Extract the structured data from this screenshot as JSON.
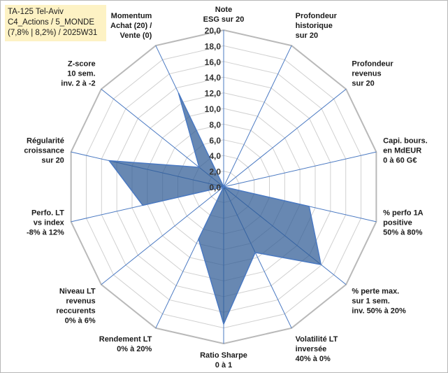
{
  "info_box": {
    "line1": "TA-125 Tel-Aviv",
    "line2": "C4_Actions / 5_MONDE",
    "line3": "(7,8% | 8,2%) / 2025W31"
  },
  "colors": {
    "fill": "#2e5a94",
    "stroke": "#4a79c2",
    "spoke": "#4a79c2",
    "grid": "#d0d0d0",
    "outer": "#b9b9b9"
  },
  "chart_data": {
    "type": "radar",
    "title": "",
    "rlim": [
      0,
      20
    ],
    "ticks": [
      "0,0",
      "2,0",
      "4,0",
      "6,0",
      "8,0",
      "10,0",
      "12,0",
      "14,0",
      "16,0",
      "18,0",
      "20,0"
    ],
    "grid": true,
    "axes": [
      [
        "Note",
        "ESG sur 20"
      ],
      [
        "Profondeur",
        "historique",
        "sur 20"
      ],
      [
        "Profondeur",
        "revenus",
        "sur 20"
      ],
      [
        "Capi. bours.",
        "en MdEUR",
        "0 à 60 G€"
      ],
      [
        "% perfo 1A",
        "positive",
        "50% à 80%"
      ],
      [
        "% perte max.",
        "sur 1 sem.",
        "inv. 50% à 20%"
      ],
      [
        "Volatilité LT",
        "inversée",
        "40% à 0%"
      ],
      [
        "Ratio Sharpe",
        "0 à 1"
      ],
      [
        "Rendement LT",
        "0% à 20%"
      ],
      [
        "Niveau LT",
        "revenus",
        "reccurents",
        "0% à 6%"
      ],
      [
        "Perfo. LT",
        "vs index",
        "-8% à 12%"
      ],
      [
        "Régularité",
        "croissance",
        "sur 20"
      ],
      [
        "Z-score",
        "10 sem.",
        "inv. 2 à -2"
      ],
      [
        "Momentum",
        "Achat (20) /",
        "Vente (0)"
      ]
    ],
    "series": [
      {
        "values": [
          0,
          0,
          0,
          0,
          11.2,
          15.9,
          9.3,
          17.5,
          7.4,
          0,
          10.6,
          15.0,
          4.0,
          13.3
        ]
      }
    ]
  }
}
